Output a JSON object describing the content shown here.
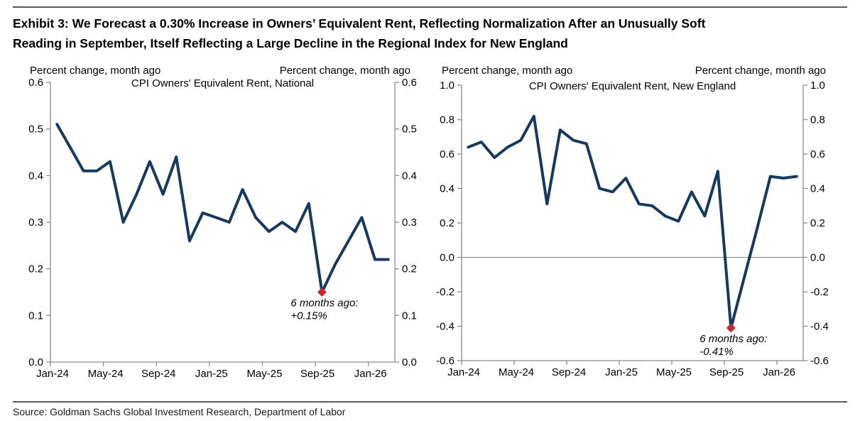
{
  "exhibit": {
    "title_line1": "Exhibit 3: We Forecast a 0.30% Increase in Owners’ Equivalent Rent, Reflecting Normalization After an Unusually Soft",
    "title_line2": "Reading in September, Itself Reflecting a Large Decline in the Regional Index for New England",
    "source": "Source: Goldman Sachs Global Investment Research, Department of Labor"
  },
  "colors": {
    "series_line": "#17395E",
    "marker_red": "#C22B33",
    "annotation_red": "#C23139",
    "axis_gray": "#8C8C8C",
    "zero_line_gray": "#808080"
  },
  "chart_data": [
    {
      "type": "line",
      "title": "CPI Owners' Equivalent Rent, National",
      "units_left": "Percent change, month ago",
      "units_right": "Percent change, month ago",
      "categories": [
        "Jan-24",
        "Feb-24",
        "Mar-24",
        "Apr-24",
        "May-24",
        "Jun-24",
        "Jul-24",
        "Aug-24",
        "Sep-24",
        "Oct-24",
        "Nov-24",
        "Dec-24",
        "Jan-25",
        "Feb-25",
        "Mar-25",
        "Apr-25",
        "May-25",
        "Jun-25",
        "Jul-25",
        "Aug-25",
        "Sep-25",
        "Oct-25",
        "Nov-25",
        "Dec-25",
        "Jan-26",
        "Feb-26"
      ],
      "values": [
        0.51,
        0.46,
        0.41,
        0.41,
        0.43,
        0.3,
        0.36,
        0.43,
        0.36,
        0.44,
        0.26,
        0.32,
        0.31,
        0.3,
        0.37,
        0.31,
        0.28,
        0.3,
        0.28,
        0.34,
        0.15,
        0.21,
        0.26,
        0.31,
        0.22,
        0.22
      ],
      "ylim": [
        0.0,
        0.6
      ],
      "ystep": 0.1,
      "xtick_labels": [
        "Jan-24",
        "May-24",
        "Sep-24",
        "Jan-25",
        "May-25",
        "Sep-25",
        "Jan-26"
      ],
      "xtick_interval": 4,
      "grid": false,
      "zero_line": false,
      "annotation": {
        "category": "Sep-25",
        "index": 20,
        "value": 0.15,
        "lines": [
          "6 months ago:",
          "+0.15%"
        ]
      }
    },
    {
      "type": "line",
      "title": "CPI Owners' Equivalent Rent, New England",
      "units_left": "Percent change, month ago",
      "units_right": "Percent change, month ago",
      "categories": [
        "Jan-24",
        "Feb-24",
        "Mar-24",
        "Apr-24",
        "May-24",
        "Jun-24",
        "Jul-24",
        "Aug-24",
        "Sep-24",
        "Oct-24",
        "Nov-24",
        "Dec-24",
        "Jan-25",
        "Feb-25",
        "Mar-25",
        "Apr-25",
        "May-25",
        "Jun-25",
        "Jul-25",
        "Aug-25",
        "Sep-25",
        "Oct-25",
        "Nov-25",
        "Dec-25",
        "Jan-26",
        "Feb-26"
      ],
      "values": [
        0.64,
        0.67,
        0.58,
        0.64,
        0.68,
        0.82,
        0.31,
        0.74,
        0.68,
        0.66,
        0.4,
        0.38,
        0.46,
        0.31,
        0.3,
        0.24,
        0.21,
        0.38,
        0.24,
        0.5,
        -0.41,
        -0.12,
        0.17,
        0.47,
        0.46,
        0.47
      ],
      "ylim": [
        -0.6,
        1.0
      ],
      "ystep": 0.2,
      "xtick_labels": [
        "Jan-24",
        "May-24",
        "Sep-24",
        "Jan-25",
        "May-25",
        "Sep-25",
        "Jan-26"
      ],
      "xtick_interval": 4,
      "grid": false,
      "zero_line": true,
      "annotation": {
        "category": "Sep-25",
        "index": 20,
        "value": -0.41,
        "lines": [
          "6 months ago:",
          "-0.41%"
        ]
      }
    }
  ]
}
